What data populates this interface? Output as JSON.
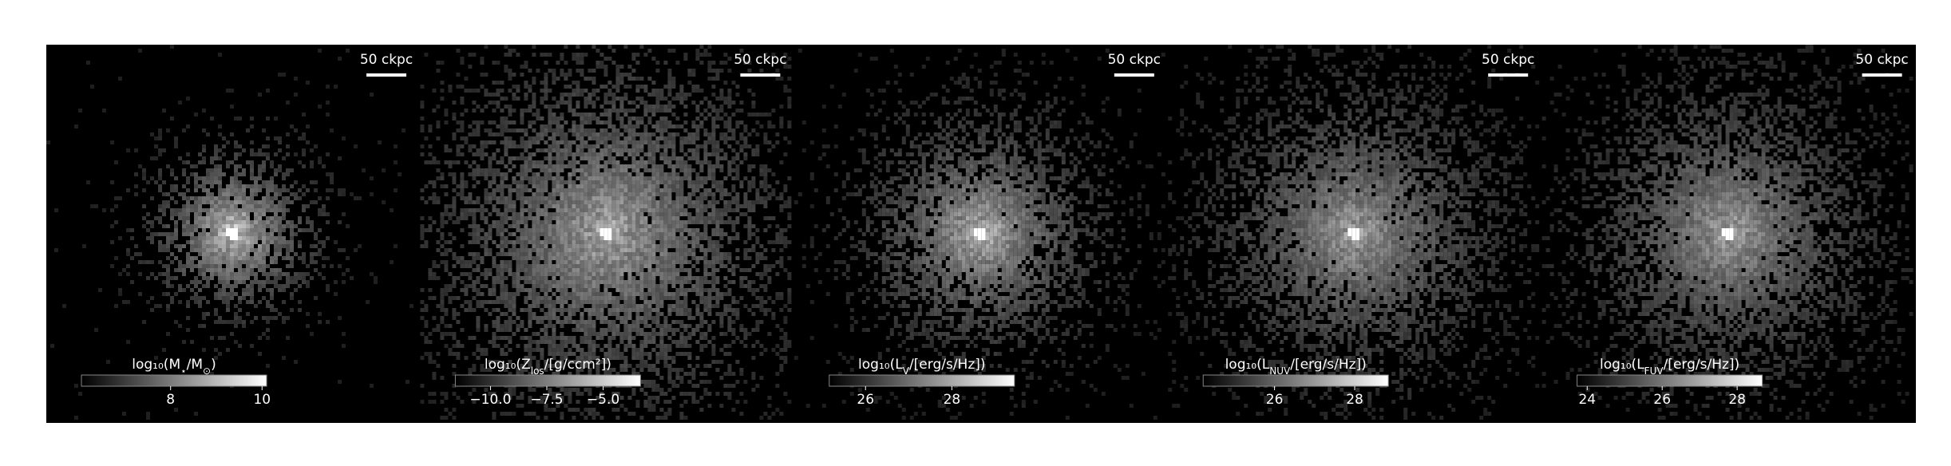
{
  "panels": [
    {
      "scale_label": "50 ckpc",
      "colorbar": {
        "label_parts": [
          "log₁₀(",
          "",
          "M",
          "⋆",
          "/M",
          "⊙",
          ")"
        ],
        "clim": [
          6.05,
          10.1
        ],
        "ticks": [
          8,
          10
        ]
      }
    },
    {
      "scale_label": "50 ckpc",
      "colorbar": {
        "label_parts": [
          "log₁₀(",
          "",
          "Z",
          "los",
          "/[g/ccm²])"
        ],
        "clim": [
          -11.56,
          -3.34
        ],
        "ticks": [
          {
            "value": -10,
            "label": "−10.0"
          },
          {
            "value": -7.5,
            "label": "−7.5"
          },
          {
            "value": -5,
            "label": "−5.0"
          }
        ]
      }
    },
    {
      "scale_label": "50 ckpc",
      "colorbar": {
        "label_parts": [
          "log₁₀(",
          "",
          "L",
          "V",
          "/[erg/s/Hz])"
        ],
        "clim": [
          25.16,
          29.45
        ],
        "ticks": [
          26,
          28
        ]
      }
    },
    {
      "scale_label": "50 ckpc",
      "colorbar": {
        "label_parts": [
          "log₁₀(",
          "",
          "L",
          "NUV",
          "/[erg/s/Hz])"
        ],
        "clim": [
          24.22,
          28.84
        ],
        "ticks": [
          26,
          28
        ]
      }
    },
    {
      "scale_label": "50 ckpc",
      "colorbar": {
        "label_parts": [
          "log₁₀(",
          "",
          "L",
          "FUV",
          "/[erg/s/Hz])"
        ],
        "clim": [
          23.73,
          28.67
        ],
        "ticks": [
          24,
          26,
          28
        ]
      }
    }
  ]
}
